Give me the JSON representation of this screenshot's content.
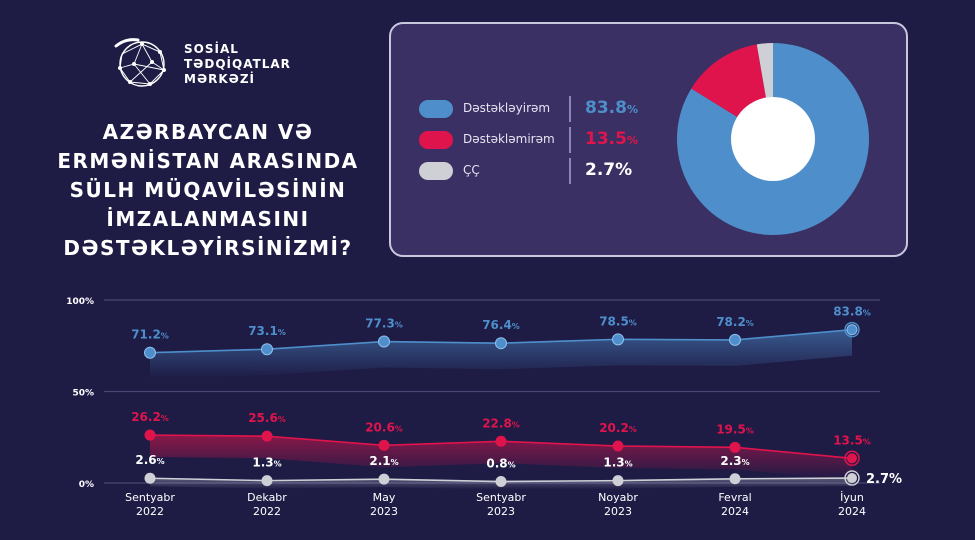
{
  "org": {
    "line1": "SOSİAL",
    "line2": "TƏDQİQATLAR",
    "line3": "MƏRKƏZİ"
  },
  "question": {
    "line1": "AZƏRBAYCAN VƏ",
    "line2": "ERMƏNİSTAN ARASINDA",
    "line3": "SÜLH MÜQAVİLƏSİNİN",
    "line4": "İMZALANMASINI",
    "line5": "DƏSTƏKLƏYİRSİNİZMİ?"
  },
  "colors": {
    "support": "#4e8fcb",
    "oppose": "#e0144c",
    "undecided": "#cfcfd6"
  },
  "chart_data": [
    {
      "type": "pie",
      "slices": [
        {
          "label": "Dəstəkləyirəm",
          "value": 83.8,
          "display": "83.8",
          "unit": "%"
        },
        {
          "label": "Dəstəkləmirəm",
          "value": 13.5,
          "display": "13.5",
          "unit": "%"
        },
        {
          "label": "ÇÇ",
          "value": 2.7,
          "display": "2.7",
          "unit": "%"
        }
      ],
      "legend_position": "left"
    },
    {
      "type": "line",
      "categories": [
        {
          "month": "Sentyabr",
          "year": "2022"
        },
        {
          "month": "Dekabr",
          "year": "2022"
        },
        {
          "month": "May",
          "year": "2023"
        },
        {
          "month": "Sentyabr",
          "year": "2023"
        },
        {
          "month": "Noyabr",
          "year": "2023"
        },
        {
          "month": "Fevral",
          "year": "2024"
        },
        {
          "month": "İyun",
          "year": "2024"
        }
      ],
      "series": [
        {
          "name": "Dəstəkləyirəm",
          "values": [
            71.2,
            73.1,
            77.3,
            76.4,
            78.5,
            78.2,
            83.8
          ]
        },
        {
          "name": "Dəstəkləmirəm",
          "values": [
            26.2,
            25.6,
            20.6,
            22.8,
            20.2,
            19.5,
            13.5
          ]
        },
        {
          "name": "ÇÇ",
          "values": [
            2.6,
            1.3,
            2.1,
            0.8,
            1.3,
            2.3,
            2.7
          ]
        }
      ],
      "yticks": [
        "100%",
        "50%",
        "0%"
      ],
      "ylim": [
        0,
        100
      ],
      "grid": true
    }
  ]
}
